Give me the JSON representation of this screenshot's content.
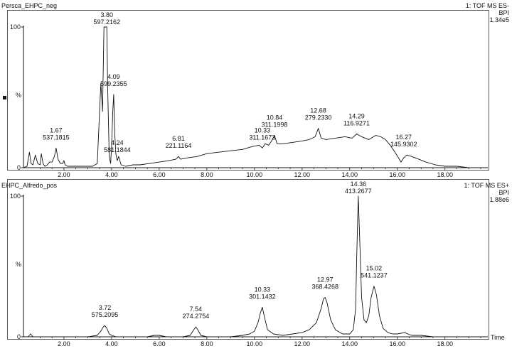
{
  "panels": [
    {
      "title": "Persca_EHPC_neg",
      "info_lines": [
        "1: TOF MS ES-",
        "BPI",
        "1.34e5"
      ],
      "ylabel": "%"
    },
    {
      "title": "EHPC_Alfredo_pos",
      "info_lines": [
        "1: TOF MS ES+",
        "BPI",
        "1.88e6"
      ],
      "ylabel": "%"
    }
  ],
  "chart_data": [
    {
      "type": "line",
      "title": "Persca_EHPC_neg",
      "ylabel": "%",
      "xlim": [
        0.3,
        19.8
      ],
      "ylim": [
        0,
        100
      ],
      "y_ticks": [
        0,
        100
      ],
      "x_ticks": [
        2.0,
        4.0,
        6.0,
        8.0,
        10.0,
        12.0,
        14.0,
        16.0,
        18.0
      ],
      "x_tick_labels": [
        "2.00",
        "4.00",
        "6.00",
        "8.00",
        "10.00",
        "12.00",
        "14.00",
        "16.00",
        "18.00"
      ],
      "series": [
        {
          "x": [
            0.3,
            0.45,
            0.55,
            0.62,
            0.7,
            0.8,
            0.9,
            1.0,
            1.05,
            1.12,
            1.2,
            1.3,
            1.4,
            1.5,
            1.6,
            1.67,
            1.75,
            1.85,
            1.95,
            2.0,
            2.05,
            2.15,
            2.3,
            2.5,
            2.8,
            3.0,
            3.2,
            3.4,
            3.55,
            3.62,
            3.68,
            3.74,
            3.78,
            3.8,
            3.84,
            3.9,
            3.96,
            4.0,
            4.05,
            4.09,
            4.13,
            4.18,
            4.24,
            4.3,
            4.4,
            4.6,
            4.9,
            5.2,
            5.6,
            6.0,
            6.4,
            6.7,
            6.81,
            6.9,
            7.2,
            7.6,
            8.0,
            8.5,
            9.0,
            9.5,
            9.9,
            10.2,
            10.33,
            10.45,
            10.6,
            10.72,
            10.84,
            10.95,
            11.2,
            11.6,
            12.0,
            12.3,
            12.55,
            12.68,
            12.8,
            13.0,
            13.4,
            13.8,
            14.1,
            14.29,
            14.5,
            14.8,
            15.1,
            15.3,
            15.5,
            15.7,
            15.9,
            16.05,
            16.15,
            16.27,
            16.4,
            16.6,
            16.9,
            17.2,
            17.6,
            18.0,
            18.5,
            19.0,
            19.5,
            19.8
          ],
          "y": [
            0,
            1,
            11,
            3,
            2,
            9,
            3,
            2,
            10,
            3,
            1,
            2,
            4,
            4,
            8,
            14,
            6,
            3,
            3,
            5,
            2,
            1,
            1,
            1,
            1,
            1,
            1,
            3,
            60,
            40,
            100,
            100,
            100,
            100,
            55,
            8,
            3,
            15,
            40,
            52,
            25,
            10,
            5,
            8,
            2,
            1,
            2,
            2,
            3,
            4,
            5,
            6,
            8,
            6,
            7,
            8,
            10,
            11,
            12,
            13,
            15,
            16,
            14,
            17,
            16,
            19,
            23,
            17,
            17,
            18,
            19,
            20,
            22,
            28,
            21,
            20,
            21,
            22,
            21,
            24,
            22,
            20,
            23,
            22,
            20,
            16,
            11,
            7,
            4,
            7,
            9,
            8,
            6,
            4,
            2,
            1,
            1,
            0,
            0,
            0
          ]
        }
      ],
      "annotations": [
        {
          "x": 1.67,
          "y": 14,
          "rt": "1.67",
          "mz": "537.1815"
        },
        {
          "x": 3.8,
          "y": 100,
          "rt": "3.80",
          "mz": "597.2162"
        },
        {
          "x": 4.09,
          "y": 52,
          "rt": "4.09",
          "mz": "599.2355"
        },
        {
          "x": 4.24,
          "y": 5,
          "rt": "4.24",
          "mz": "581.1844"
        },
        {
          "x": 6.81,
          "y": 8,
          "rt": "6.81",
          "mz": "221.1164"
        },
        {
          "x": 10.33,
          "y": 14,
          "rt": "10.33",
          "mz": "311.1673"
        },
        {
          "x": 10.84,
          "y": 23,
          "rt": "10.84",
          "mz": "311.1998"
        },
        {
          "x": 12.68,
          "y": 28,
          "rt": "12.68",
          "mz": "279.2330"
        },
        {
          "x": 14.29,
          "y": 24,
          "rt": "14.29",
          "mz": "116.9271"
        },
        {
          "x": 16.27,
          "y": 9,
          "rt": "16.27",
          "mz": "145.9302"
        }
      ]
    },
    {
      "type": "line",
      "title": "EHPC_Alfredo_pos",
      "ylabel": "%",
      "xlabel": "Time",
      "xlim": [
        0.3,
        19.8
      ],
      "ylim": [
        0,
        100
      ],
      "y_ticks": [
        0,
        100
      ],
      "x_ticks": [
        2.0,
        4.0,
        6.0,
        8.0,
        10.0,
        12.0,
        14.0,
        16.0,
        18.0
      ],
      "x_tick_labels": [
        "2.00",
        "4.00",
        "6.00",
        "8.00",
        "10.00",
        "12.00",
        "14.00",
        "16.00",
        "18.00"
      ],
      "series": [
        {
          "x": [
            0.3,
            0.5,
            0.6,
            0.7,
            1.0,
            1.5,
            2.0,
            2.5,
            3.0,
            3.4,
            3.55,
            3.65,
            3.72,
            3.8,
            3.9,
            4.0,
            4.2,
            4.5,
            5.0,
            5.5,
            5.8,
            6.0,
            6.3,
            6.6,
            7.0,
            7.3,
            7.45,
            7.54,
            7.62,
            7.75,
            8.0,
            8.5,
            9.0,
            9.5,
            9.8,
            10.0,
            10.15,
            10.25,
            10.33,
            10.42,
            10.55,
            10.8,
            11.2,
            11.6,
            12.0,
            12.3,
            12.6,
            12.8,
            12.9,
            12.97,
            13.05,
            13.2,
            13.4,
            13.7,
            14.0,
            14.15,
            14.25,
            14.3,
            14.36,
            14.42,
            14.5,
            14.6,
            14.7,
            14.8,
            14.9,
            15.02,
            15.12,
            15.25,
            15.4,
            15.6,
            15.8,
            16.0,
            16.3,
            16.6,
            17.0,
            17.5,
            18.0,
            18.5,
            19.0,
            19.5,
            19.8
          ],
          "y": [
            0,
            0,
            2,
            0,
            0,
            0,
            0,
            0,
            0,
            1,
            4,
            7,
            8,
            6,
            2,
            1,
            0,
            0,
            0,
            0,
            1,
            1,
            0,
            0,
            0,
            1,
            5,
            7,
            5,
            1,
            0,
            0,
            0,
            1,
            2,
            4,
            10,
            17,
            21,
            14,
            5,
            2,
            1,
            2,
            3,
            5,
            10,
            20,
            27,
            28,
            24,
            12,
            5,
            2,
            2,
            5,
            20,
            60,
            100,
            70,
            28,
            12,
            10,
            15,
            28,
            36,
            30,
            15,
            6,
            3,
            2,
            2,
            3,
            1,
            1,
            0,
            0,
            0,
            0,
            0,
            0
          ]
        }
      ],
      "annotations": [
        {
          "x": 3.72,
          "y": 8,
          "rt": "3.72",
          "mz": "575.2095"
        },
        {
          "x": 7.54,
          "y": 7,
          "rt": "7.54",
          "mz": "274.2754"
        },
        {
          "x": 10.33,
          "y": 21,
          "rt": "10.33",
          "mz": "301.1432"
        },
        {
          "x": 12.97,
          "y": 28,
          "rt": "12.97",
          "mz": "368.4268"
        },
        {
          "x": 14.36,
          "y": 100,
          "rt": "14.36",
          "mz": "413.2677"
        },
        {
          "x": 15.02,
          "y": 36,
          "rt": "15.02",
          "mz": "541.1237"
        }
      ]
    }
  ]
}
